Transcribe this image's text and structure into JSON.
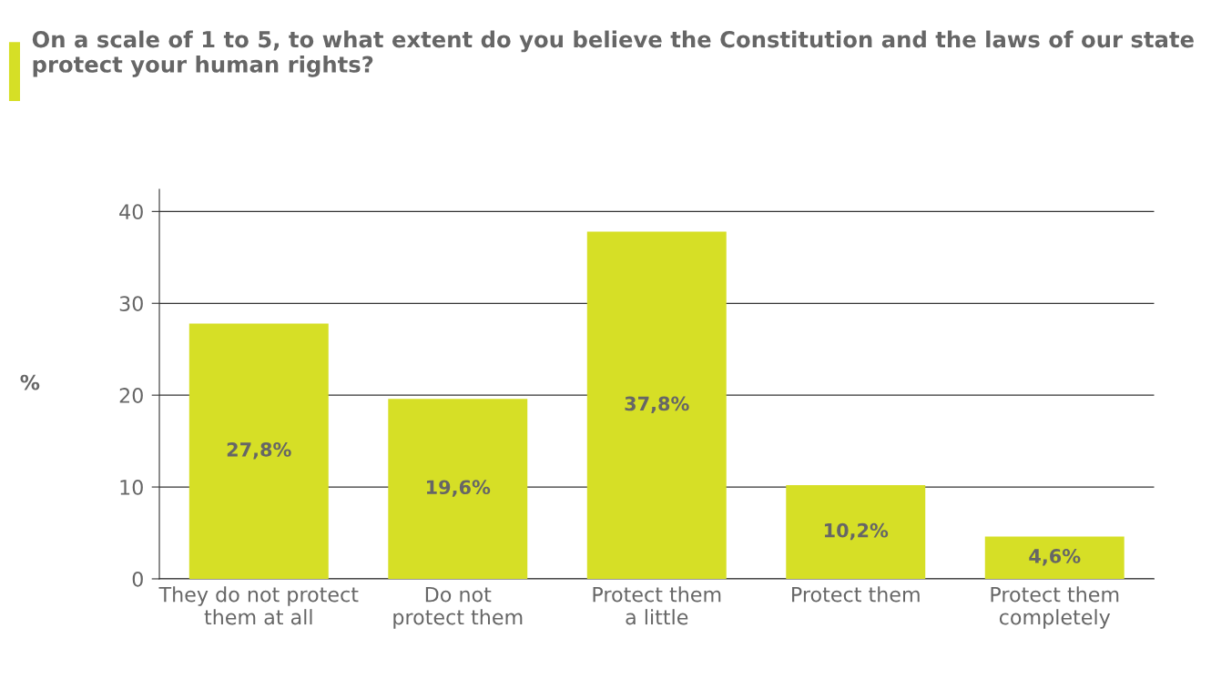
{
  "chart_data": {
    "type": "bar",
    "title": "On a scale of 1 to 5, to what extent do you believe the Constitution and the laws of our state protect your human rights?",
    "ylabel": "%",
    "categories": [
      "They do not protect\nthem at all",
      "Do not\nprotect them",
      "Protect them\na little",
      "Protect them",
      "Protect them\ncompletely"
    ],
    "values": [
      27.8,
      19.6,
      37.8,
      10.2,
      4.6
    ],
    "value_labels": [
      "27,8%",
      "19,6%",
      "37,8%",
      "10,2%",
      "4,6%"
    ],
    "color": "#d6df26",
    "ylim": [
      0,
      42.4
    ],
    "yticks": [
      0,
      10,
      20,
      30,
      40
    ],
    "grid": "y",
    "legend": false
  }
}
